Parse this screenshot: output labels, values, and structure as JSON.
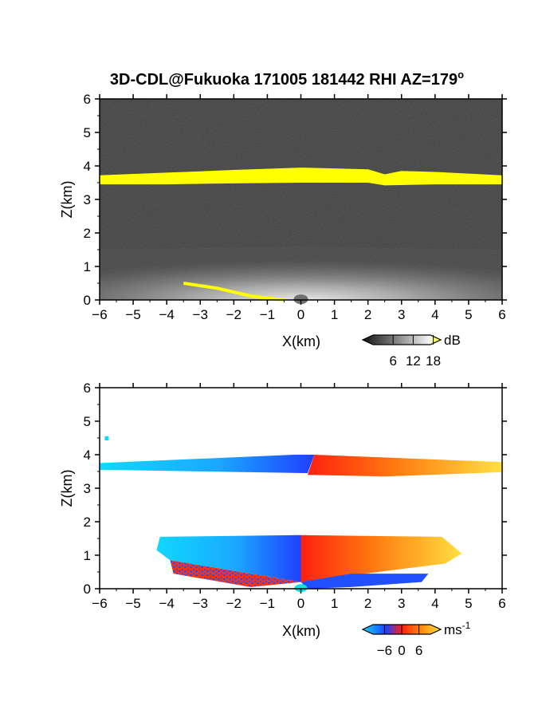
{
  "title": {
    "text": "3D-CDL@Fukuoka 171005 181442 RHI AZ=179",
    "degree": "o"
  },
  "colors": {
    "layer_yellow": "#ffff00",
    "background_dark": "#2a2a2a",
    "doppler_blue": "#2050ff",
    "doppler_cyan": "#10d8ff",
    "doppler_red": "#ff3010",
    "doppler_orange": "#ff9a10",
    "doppler_yellow": "#ffe040"
  },
  "chart_data": [
    {
      "type": "heatmap",
      "field": "backscatter intensity",
      "xlabel": "X(km)",
      "ylabel": "Z(km)",
      "xlim": [
        -6,
        6
      ],
      "ylim": [
        0,
        6
      ],
      "xticks": [
        -6,
        -5,
        -4,
        -3,
        -2,
        -1,
        0,
        1,
        2,
        3,
        4,
        5,
        6
      ],
      "yticks": [
        0,
        1,
        2,
        3,
        4,
        5,
        6
      ],
      "colorbar": {
        "unit": "dB",
        "ticks": [
          6,
          12,
          18
        ]
      },
      "features": {
        "cloud_layer_bottom": [
          [
            -6,
            3.45
          ],
          [
            -4,
            3.45
          ],
          [
            -2,
            3.48
          ],
          [
            0,
            3.5
          ],
          [
            2,
            3.5
          ],
          [
            2.5,
            3.42
          ],
          [
            4,
            3.45
          ],
          [
            6,
            3.45
          ]
        ],
        "cloud_layer_top": [
          [
            -6,
            3.72
          ],
          [
            -4,
            3.8
          ],
          [
            -2,
            3.88
          ],
          [
            0,
            3.95
          ],
          [
            2,
            3.9
          ],
          [
            2.5,
            3.75
          ],
          [
            3,
            3.85
          ],
          [
            4,
            3.82
          ],
          [
            6,
            3.72
          ]
        ],
        "boundary_layer_top": [
          [
            -6,
            1.5
          ],
          [
            -3,
            1.55
          ],
          [
            0,
            1.6
          ],
          [
            3,
            1.55
          ],
          [
            6,
            1.5
          ]
        ],
        "surface_echo_line": [
          [
            -3.5,
            0.5
          ],
          [
            -2.5,
            0.35
          ],
          [
            -1.5,
            0.12
          ],
          [
            -1,
            0.05
          ],
          [
            -0.5,
            0.0
          ]
        ]
      }
    },
    {
      "type": "heatmap",
      "field": "Doppler velocity",
      "xlabel": "X(km)",
      "ylabel": "Z(km)",
      "xlim": [
        -6,
        6
      ],
      "ylim": [
        0,
        6
      ],
      "xticks": [
        -6,
        -5,
        -4,
        -3,
        -2,
        -1,
        0,
        1,
        2,
        3,
        4,
        5,
        6
      ],
      "yticks": [
        0,
        1,
        2,
        3,
        4,
        5,
        6
      ],
      "colorbar": {
        "unit": "ms",
        "unit_exponent": "-1",
        "ticks": [
          -6,
          0,
          6
        ]
      },
      "features": {
        "cloud_layer": {
          "x_range": [
            -6,
            6
          ],
          "z_range": [
            3.4,
            4.0
          ],
          "velocity_left": -6,
          "velocity_right": 6
        },
        "boundary_layer": {
          "x_range": [
            -4.5,
            4.8
          ],
          "z_range": [
            0,
            1.6
          ],
          "velocity_left": -6,
          "velocity_right": 6
        },
        "isolated_echo": {
          "x": -5.8,
          "z": 4.5
        }
      }
    }
  ]
}
